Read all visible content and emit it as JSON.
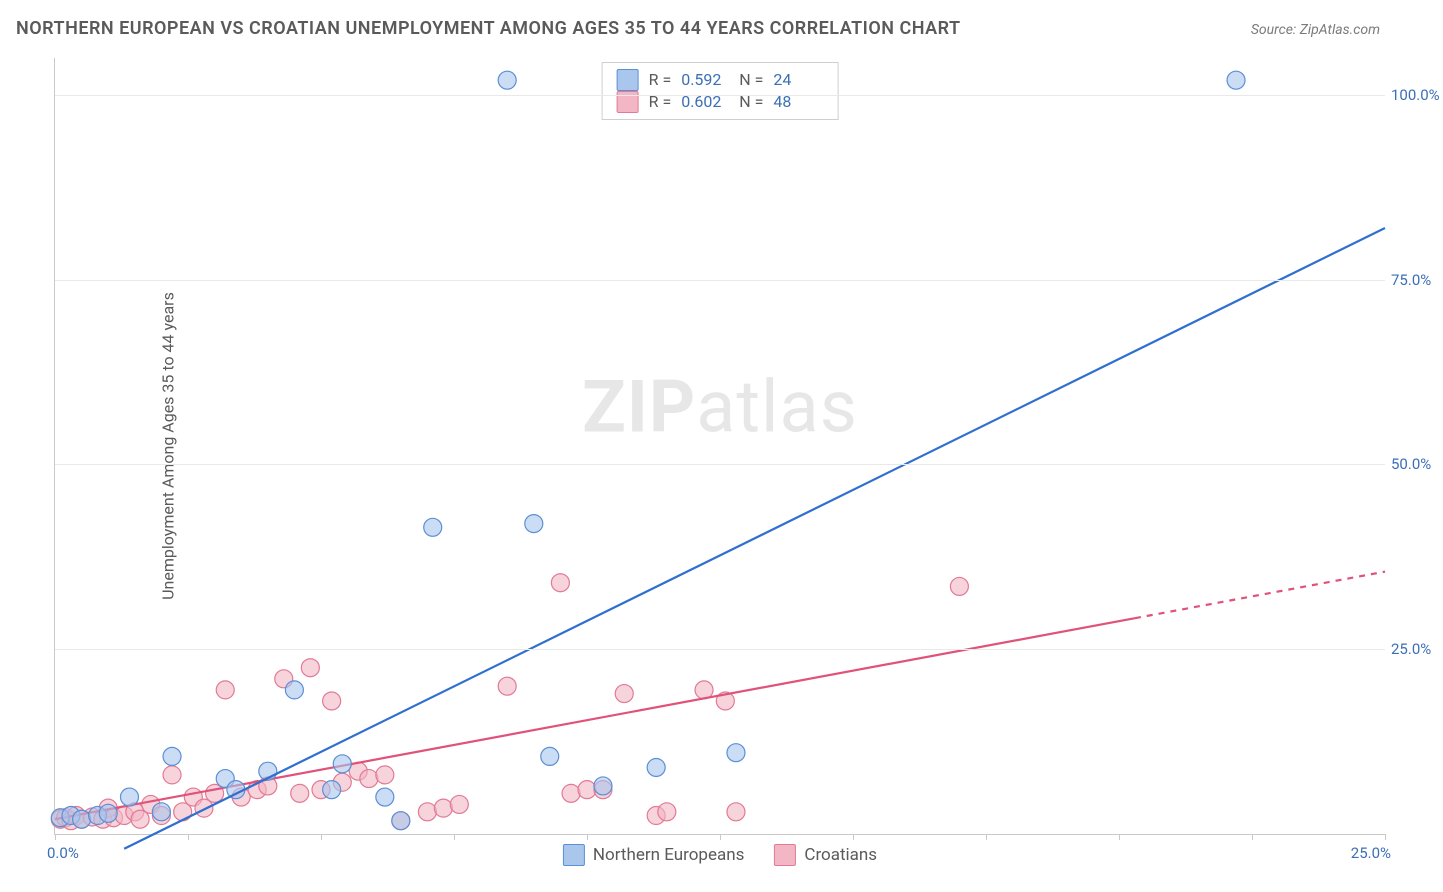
{
  "title": "NORTHERN EUROPEAN VS CROATIAN UNEMPLOYMENT AMONG AGES 35 TO 44 YEARS CORRELATION CHART",
  "source": "Source: ZipAtlas.com",
  "ylabel": "Unemployment Among Ages 35 to 44 years",
  "watermark_bold": "ZIP",
  "watermark_rest": "atlas",
  "chart": {
    "type": "scatter",
    "xlim": [
      0,
      25
    ],
    "ylim": [
      0,
      105
    ],
    "x_tick_positions": [
      0,
      2.5,
      5,
      7.5,
      10,
      12.5,
      15,
      17.5,
      20,
      22.5,
      25
    ],
    "x_tick_labels_shown": {
      "0": "0.0%",
      "25": "25.0%"
    },
    "y_tick_positions": [
      25,
      50,
      75,
      100
    ],
    "y_tick_labels": [
      "25.0%",
      "50.0%",
      "75.0%",
      "100.0%"
    ],
    "background_color": "#ffffff",
    "grid_color": "#e9e9e9",
    "axis_color": "#c9c9c9",
    "series": [
      {
        "name": "Northern Europeans",
        "color_fill": "#a9c6ec",
        "color_stroke": "#5b8fd6",
        "line_color": "#2f6fd0",
        "line_width": 2.2,
        "marker_radius": 9,
        "marker_opacity": 0.6,
        "R": "0.592",
        "N": "24",
        "trend": {
          "x1": 1.3,
          "y1": -2,
          "x2": 25,
          "y2": 82,
          "dash_from_x": null
        },
        "points": [
          [
            0.1,
            2.2
          ],
          [
            0.3,
            2.5
          ],
          [
            0.5,
            2.0
          ],
          [
            0.8,
            2.5
          ],
          [
            1.0,
            2.8
          ],
          [
            1.4,
            5.0
          ],
          [
            2.0,
            3.0
          ],
          [
            2.2,
            10.5
          ],
          [
            3.2,
            7.5
          ],
          [
            3.4,
            6.0
          ],
          [
            4.0,
            8.5
          ],
          [
            4.5,
            19.5
          ],
          [
            5.2,
            6.0
          ],
          [
            5.4,
            9.5
          ],
          [
            6.2,
            5.0
          ],
          [
            6.5,
            1.8
          ],
          [
            7.1,
            41.5
          ],
          [
            8.5,
            102
          ],
          [
            9.0,
            42.0
          ],
          [
            9.3,
            10.5
          ],
          [
            10.3,
            6.5
          ],
          [
            11.3,
            9.0
          ],
          [
            12.8,
            11.0
          ],
          [
            22.2,
            102
          ]
        ]
      },
      {
        "name": "Croatians",
        "color_fill": "#f2b6c4",
        "color_stroke": "#e27a95",
        "line_color": "#e0527a",
        "line_width": 2.2,
        "marker_radius": 9,
        "marker_opacity": 0.6,
        "R": "0.602",
        "N": "48",
        "trend": {
          "x1": 0,
          "y1": 2.0,
          "x2": 25,
          "y2": 35.5,
          "dash_from_x": 20.3
        },
        "points": [
          [
            0.1,
            2.0
          ],
          [
            0.2,
            2.2
          ],
          [
            0.3,
            1.8
          ],
          [
            0.4,
            2.5
          ],
          [
            0.5,
            2.0
          ],
          [
            0.7,
            2.3
          ],
          [
            0.9,
            2.0
          ],
          [
            1.0,
            3.5
          ],
          [
            1.1,
            2.2
          ],
          [
            1.3,
            2.5
          ],
          [
            1.5,
            3.0
          ],
          [
            1.6,
            2.0
          ],
          [
            1.8,
            4.0
          ],
          [
            2.0,
            2.5
          ],
          [
            2.2,
            8.0
          ],
          [
            2.4,
            3.0
          ],
          [
            2.6,
            5.0
          ],
          [
            2.8,
            3.5
          ],
          [
            3.0,
            5.5
          ],
          [
            3.2,
            19.5
          ],
          [
            3.5,
            5.0
          ],
          [
            3.8,
            6.0
          ],
          [
            4.0,
            6.5
          ],
          [
            4.3,
            21.0
          ],
          [
            4.6,
            5.5
          ],
          [
            4.8,
            22.5
          ],
          [
            5.0,
            6.0
          ],
          [
            5.2,
            18.0
          ],
          [
            5.4,
            7.0
          ],
          [
            5.7,
            8.5
          ],
          [
            5.9,
            7.5
          ],
          [
            6.2,
            8.0
          ],
          [
            6.5,
            1.8
          ],
          [
            7.0,
            3.0
          ],
          [
            7.3,
            3.5
          ],
          [
            7.6,
            4.0
          ],
          [
            8.5,
            20.0
          ],
          [
            9.5,
            34.0
          ],
          [
            9.7,
            5.5
          ],
          [
            10.0,
            6.0
          ],
          [
            10.3,
            6.0
          ],
          [
            10.7,
            19.0
          ],
          [
            11.3,
            2.5
          ],
          [
            11.5,
            3.0
          ],
          [
            12.2,
            19.5
          ],
          [
            12.6,
            18.0
          ],
          [
            12.8,
            3.0
          ],
          [
            17.0,
            33.5
          ]
        ]
      }
    ],
    "legend_bottom": [
      {
        "label": "Northern Europeans",
        "fill": "#a9c6ec",
        "stroke": "#5b8fd6"
      },
      {
        "label": "Croatians",
        "fill": "#f2b6c4",
        "stroke": "#e27a95"
      }
    ]
  }
}
